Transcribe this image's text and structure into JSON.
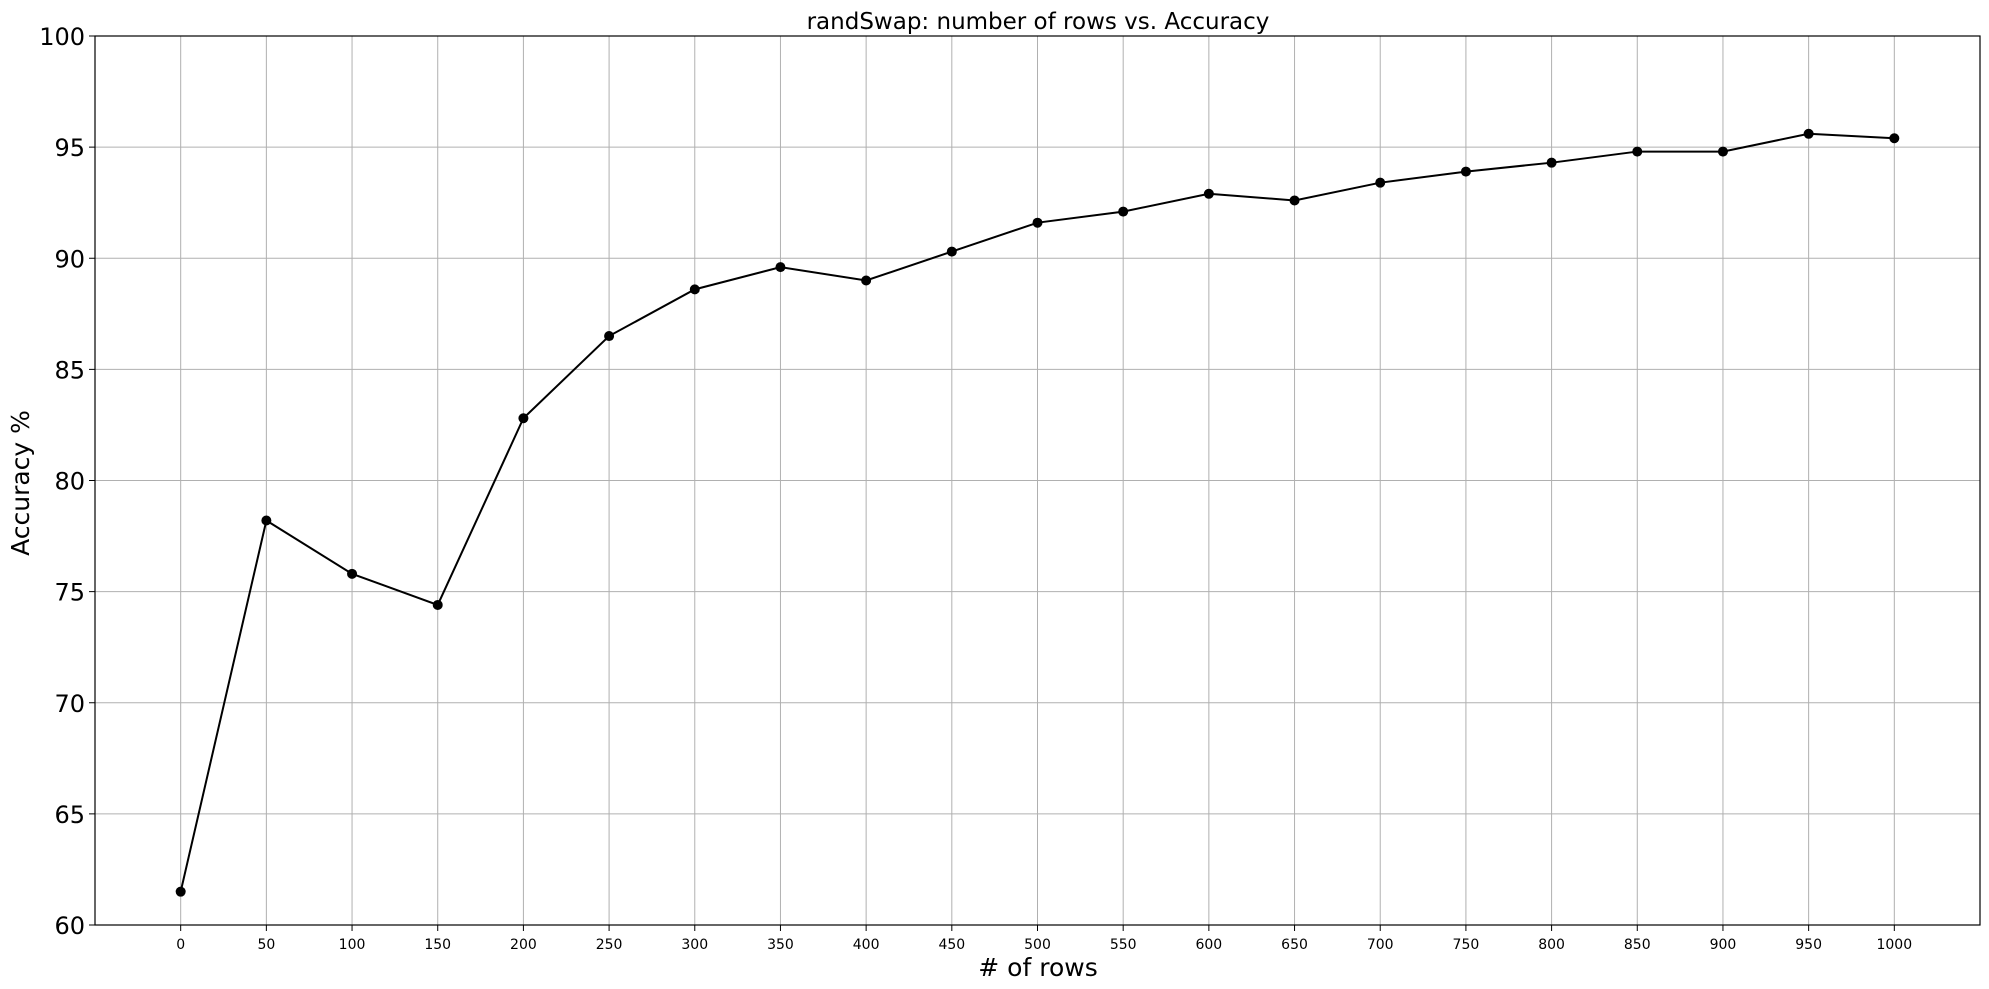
{
  "chart_data": {
    "type": "line",
    "title": "randSwap: number of rows vs. Accuracy",
    "xlabel": "# of rows",
    "ylabel": "Accuracy %",
    "x": [
      0,
      50,
      100,
      150,
      200,
      250,
      300,
      350,
      400,
      450,
      500,
      550,
      600,
      650,
      700,
      750,
      800,
      850,
      900,
      950,
      1000
    ],
    "series": [
      {
        "values": [
          61.5,
          78.2,
          75.8,
          74.4,
          82.8,
          86.5,
          88.6,
          89.6,
          89.0,
          90.3,
          91.6,
          92.1,
          92.9,
          92.6,
          93.4,
          93.9,
          94.3,
          94.8,
          94.8,
          95.6,
          95.4
        ],
        "color": "#000000",
        "marker": "circle"
      }
    ],
    "xticks": [
      0,
      50,
      100,
      150,
      200,
      250,
      300,
      350,
      400,
      450,
      500,
      550,
      600,
      650,
      700,
      750,
      800,
      850,
      900,
      950,
      1000
    ],
    "yticks": [
      60,
      65,
      70,
      75,
      80,
      85,
      90,
      95,
      100
    ],
    "xlim": [
      -50,
      1050
    ],
    "ylim": [
      60,
      100
    ],
    "grid": true,
    "legend": "none"
  }
}
